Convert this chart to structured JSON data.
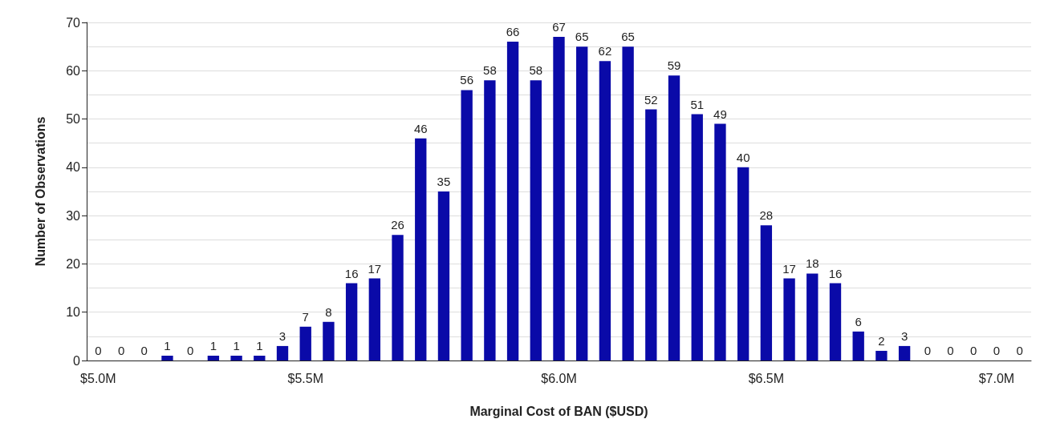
{
  "chart_data": {
    "type": "bar",
    "xlabel": "Marginal Cost of BAN ($USD)",
    "ylabel": "Number of Observations",
    "categories": [
      "$5.0M",
      null,
      null,
      null,
      null,
      null,
      null,
      null,
      null,
      "$5.5M",
      null,
      null,
      null,
      null,
      null,
      null,
      null,
      null,
      null,
      null,
      "$6.0M",
      null,
      null,
      null,
      null,
      null,
      null,
      null,
      null,
      "$6.5M",
      null,
      null,
      null,
      null,
      null,
      null,
      null,
      null,
      null,
      "$7.0M",
      null
    ],
    "values": [
      0,
      0,
      0,
      1,
      0,
      1,
      1,
      1,
      3,
      7,
      8,
      16,
      17,
      26,
      46,
      35,
      56,
      58,
      66,
      58,
      67,
      65,
      62,
      65,
      52,
      59,
      51,
      49,
      40,
      28,
      17,
      18,
      16,
      6,
      2,
      3,
      0,
      0,
      0,
      0,
      0
    ],
    "color": "#0a0aa8",
    "data_labels": true,
    "grid": "y",
    "ylim": [
      0,
      70
    ],
    "yticks": [
      0,
      {
        "value": 5,
        "label": null
      },
      10,
      {
        "value": 15,
        "label": null
      },
      20,
      {
        "value": 25,
        "label": null
      },
      30,
      {
        "value": 35,
        "label": null
      },
      40,
      {
        "value": 45,
        "label": null
      },
      50,
      {
        "value": 55,
        "label": null
      },
      60,
      {
        "value": 65,
        "label": null
      },
      70
    ]
  }
}
